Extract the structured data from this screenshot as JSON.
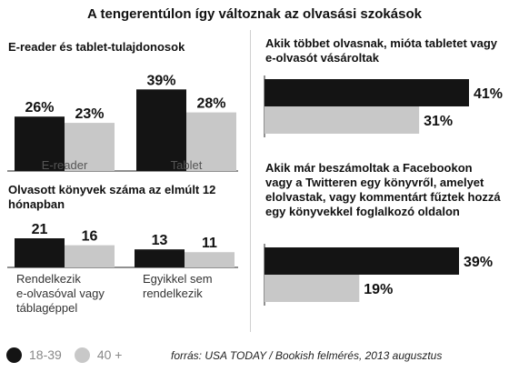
{
  "title": "A tengerentúlon így változnak az olvasási szokások",
  "colors": {
    "dark": "#141414",
    "light": "#c8c8c8",
    "axis": "#222222"
  },
  "legend": [
    {
      "label": "18-39",
      "color": "#141414"
    },
    {
      "label": "40 +",
      "color": "#c8c8c8"
    }
  ],
  "source": "forrás: USA TODAY / Bookish felmérés, 2013 augusztus",
  "chart_data": [
    {
      "type": "bar",
      "title": "E-reader és tablet-tulajdonosok",
      "categories": [
        "E-reader",
        "Tablet"
      ],
      "series": [
        {
          "name": "18-39",
          "values": [
            26,
            39
          ],
          "labels": [
            "26%",
            "39%"
          ]
        },
        {
          "name": "40 +",
          "values": [
            23,
            28
          ],
          "labels": [
            "23%",
            "28%"
          ]
        }
      ],
      "ylim": [
        0,
        40
      ]
    },
    {
      "type": "bar",
      "title": "Olvasott könyvek száma az elmúlt 12 hónapban",
      "categories": [
        "Rendelkezik e-olvasóval vagy táblagéppel",
        "Egyikkel sem rendelkezik"
      ],
      "category_lines": [
        [
          "Rendelkezik",
          "e-olvasóval vagy",
          "táblagéppel"
        ],
        [
          "Egyikkel sem",
          "rendelkezik"
        ]
      ],
      "series": [
        {
          "name": "18-39",
          "values": [
            21,
            13
          ],
          "labels": [
            "21",
            "13"
          ]
        },
        {
          "name": "40 +",
          "values": [
            16,
            11
          ],
          "labels": [
            "16",
            "11"
          ]
        }
      ],
      "ylim": [
        0,
        21
      ]
    },
    {
      "type": "bar",
      "orientation": "horizontal",
      "title": "Akik többet olvasnak, mióta tabletet vagy e-olvasót vásároltak",
      "series": [
        {
          "name": "18-39",
          "values": [
            41
          ],
          "labels": [
            "41%"
          ]
        },
        {
          "name": "40 +",
          "values": [
            31
          ],
          "labels": [
            "31%"
          ]
        }
      ],
      "xlim": [
        0,
        41
      ]
    },
    {
      "type": "bar",
      "orientation": "horizontal",
      "title": "Akik már beszámoltak a Facebookon vagy a Twitteren egy könyvről, amelyet elolvastak, vagy kommentárt fűztek hozzá egy könyvekkel foglalkozó oldalon",
      "series": [
        {
          "name": "18-39",
          "values": [
            39
          ],
          "labels": [
            "39%"
          ]
        },
        {
          "name": "40 +",
          "values": [
            19
          ],
          "labels": [
            "19%"
          ]
        }
      ],
      "xlim": [
        0,
        41
      ]
    }
  ]
}
